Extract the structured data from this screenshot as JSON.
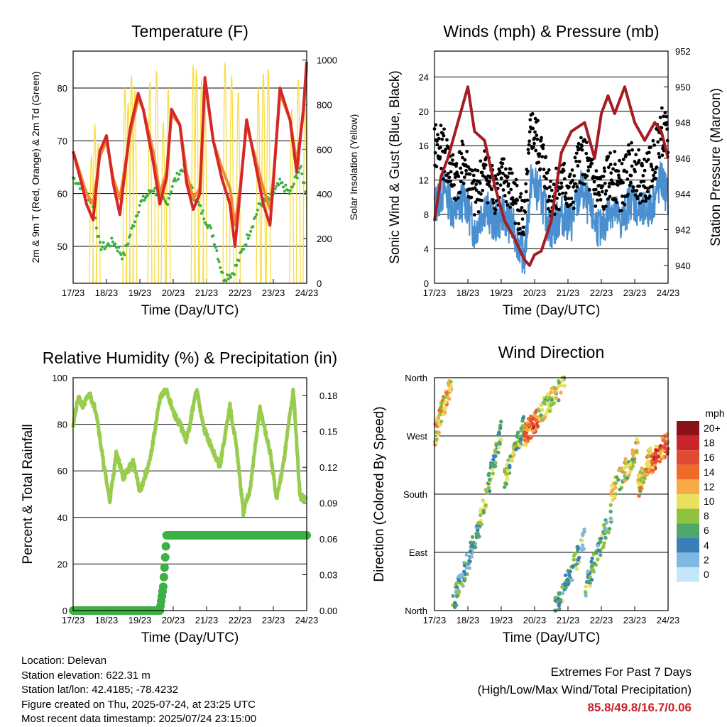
{
  "colors": {
    "temp_2m": "#d62728",
    "temp_9m": "#f08a2a",
    "dewpoint": "#3cb043",
    "solar": "#f7dd45",
    "sonic_wind": "#4a90d0",
    "gust": "#000000",
    "pressure": "#a51c24",
    "rh": "#98cc4e",
    "precip": "#3cb043",
    "extremes": "#c8242a"
  },
  "chart_data": [
    {
      "id": "temperature",
      "type": "line",
      "title": "Temperature (F)",
      "xlabel": "Time (Day/UTC)",
      "ylabel": "2m & 9m T (Red, Orange) & 2m Td (Green)",
      "y2label": "Solar Insolation (Yellow)",
      "x_ticks": [
        "17/23",
        "18/23",
        "19/23",
        "20/23",
        "21/23",
        "22/23",
        "23/23",
        "24/23"
      ],
      "xlim": [
        0,
        7
      ],
      "ylim": [
        43,
        87
      ],
      "y_ticks": [
        50,
        60,
        70,
        80
      ],
      "y2lim": [
        0,
        1040
      ],
      "y2_ticks": [
        0,
        200,
        400,
        600,
        800,
        1000
      ],
      "series": [
        {
          "name": "2m T",
          "x": [
            0,
            0.25,
            0.4,
            0.6,
            0.8,
            1.0,
            1.2,
            1.4,
            1.7,
            1.95,
            2.1,
            2.4,
            2.6,
            2.8,
            2.95,
            3.2,
            3.4,
            3.6,
            3.8,
            3.95,
            4.2,
            4.45,
            4.7,
            4.85,
            5.0,
            5.2,
            5.45,
            5.7,
            5.9,
            6.0,
            6.2,
            6.5,
            6.7,
            6.9,
            7.0
          ],
          "y": [
            68,
            62,
            58,
            55,
            68,
            71,
            62,
            56,
            72,
            79,
            76,
            66,
            58,
            63,
            76,
            73,
            62,
            57,
            60,
            82,
            70,
            63,
            58,
            50,
            60,
            74,
            66,
            58,
            54,
            62,
            80,
            74,
            64,
            76,
            85
          ]
        },
        {
          "name": "9m T",
          "x": [
            0,
            0.25,
            0.4,
            0.6,
            0.8,
            1.0,
            1.2,
            1.4,
            1.7,
            1.95,
            2.1,
            2.4,
            2.6,
            2.8,
            2.95,
            3.2,
            3.4,
            3.6,
            3.8,
            3.95,
            4.2,
            4.45,
            4.7,
            4.85,
            5.0,
            5.2,
            5.45,
            5.7,
            5.9,
            6.0,
            6.2,
            6.5,
            6.7,
            6.9,
            7.0
          ],
          "y": [
            68,
            63,
            60,
            58,
            67,
            70,
            63,
            59,
            71,
            78,
            76,
            68,
            60,
            64,
            75,
            73,
            64,
            59,
            61,
            81,
            70,
            65,
            61,
            54,
            61,
            73,
            67,
            61,
            57,
            63,
            79,
            74,
            66,
            75,
            84
          ]
        },
        {
          "name": "2m Td",
          "x": [
            0,
            0.3,
            0.6,
            0.8,
            1.0,
            1.2,
            1.5,
            1.8,
            2.0,
            2.4,
            2.8,
            3.0,
            3.3,
            3.6,
            3.9,
            4.2,
            4.5,
            4.8,
            5.0,
            5.3,
            5.6,
            5.9,
            6.2,
            6.5,
            6.8,
            7.0
          ],
          "y": [
            63,
            61,
            58,
            50,
            50,
            51,
            48,
            54,
            58,
            61,
            58,
            62,
            65,
            60,
            56,
            52,
            44,
            45,
            48,
            53,
            58,
            59,
            62,
            60,
            65,
            60
          ]
        },
        {
          "name": "Solar",
          "axis": "y2",
          "peaks": [
            0.55,
            0.65,
            0.75,
            1.55,
            1.65,
            1.75,
            1.85,
            2.3,
            2.5,
            2.7,
            2.85,
            3.6,
            3.7,
            3.85,
            3.95,
            4.55,
            4.75,
            4.95,
            5.55,
            5.7,
            5.85,
            6.55,
            6.75,
            6.95
          ],
          "peak_values": [
            600,
            750,
            660,
            920,
            850,
            980,
            910,
            950,
            1000,
            760,
            920,
            1030,
            1010,
            960,
            880,
            1040,
            980,
            900,
            920,
            990,
            1010,
            820,
            960,
            880
          ]
        }
      ]
    },
    {
      "id": "winds",
      "type": "line",
      "title": "Winds (mph) & Pressure (mb)",
      "xlabel": "Time (Day/UTC)",
      "ylabel": "Sonic Wind & Gust (Blue, Black)",
      "y2label": "Station Pressure (Maroon)",
      "x_ticks": [
        "17/23",
        "18/23",
        "19/23",
        "20/23",
        "21/23",
        "22/23",
        "23/23",
        "24/23"
      ],
      "xlim": [
        0,
        7
      ],
      "ylim": [
        0,
        27
      ],
      "y_ticks": [
        0,
        4,
        8,
        12,
        16,
        20,
        24
      ],
      "y2lim": [
        939,
        952
      ],
      "y2_ticks": [
        940,
        942,
        944,
        946,
        948,
        950,
        952
      ],
      "series": [
        {
          "name": "Sonic Wind",
          "x": [
            0,
            0.3,
            0.6,
            0.9,
            1.2,
            1.5,
            1.8,
            2.1,
            2.4,
            2.7,
            2.9,
            3.2,
            3.5,
            3.8,
            4.1,
            4.4,
            4.7,
            5.0,
            5.3,
            5.6,
            5.9,
            6.2,
            6.5,
            6.8,
            7.0
          ],
          "y": [
            9,
            11,
            8,
            10,
            6,
            9,
            7,
            8,
            6,
            3,
            12,
            10,
            6,
            8,
            7,
            11,
            8,
            6,
            9,
            7,
            10,
            8,
            9,
            12,
            10
          ]
        },
        {
          "name": "Gust",
          "x": [
            0,
            0.3,
            0.6,
            0.9,
            1.2,
            1.5,
            1.8,
            2.1,
            2.4,
            2.7,
            2.9,
            3.2,
            3.5,
            3.8,
            4.1,
            4.4,
            4.7,
            5.0,
            5.3,
            5.6,
            5.9,
            6.2,
            6.5,
            6.8,
            7.0
          ],
          "y": [
            16,
            15,
            12,
            14,
            10,
            13,
            11,
            12,
            10,
            7,
            18,
            15,
            10,
            12,
            10,
            15,
            12,
            10,
            13,
            11,
            14,
            12,
            13,
            18,
            16
          ]
        },
        {
          "name": "Station Pressure",
          "axis": "y2",
          "x": [
            0,
            0.2,
            0.4,
            0.7,
            1.0,
            1.2,
            1.5,
            1.8,
            2.1,
            2.4,
            2.7,
            2.85,
            3.0,
            3.2,
            3.5,
            3.8,
            4.1,
            4.5,
            4.8,
            5.0,
            5.2,
            5.4,
            5.7,
            6.0,
            6.3,
            6.6,
            6.8,
            7.0
          ],
          "y": [
            942.5,
            945,
            946,
            948,
            950,
            947.5,
            947,
            944.5,
            942.5,
            941.5,
            940.3,
            940,
            940.6,
            940.8,
            942.5,
            946.3,
            947.5,
            948,
            946,
            948.5,
            949.5,
            948.5,
            950,
            948,
            947,
            948,
            947.5,
            946
          ]
        }
      ]
    },
    {
      "id": "humidity",
      "type": "line",
      "title": "Relative Humidity (%) & Precipitation (in)",
      "xlabel": "Time (Day/UTC)",
      "ylabel": "Percent & Total Rainfall",
      "x_ticks": [
        "17/23",
        "18/23",
        "19/23",
        "20/23",
        "21/23",
        "22/23",
        "23/23",
        "24/23"
      ],
      "xlim": [
        0,
        7
      ],
      "ylim": [
        0,
        100
      ],
      "y_ticks": [
        0,
        20,
        40,
        60,
        80,
        100
      ],
      "y2lim": [
        0,
        0.195
      ],
      "y2_ticks": [
        "0.00",
        "0.03",
        "0.06",
        "0.09",
        "0.12",
        "0.15",
        "0.18"
      ],
      "series": [
        {
          "name": "RH",
          "x": [
            0,
            0.15,
            0.3,
            0.5,
            0.7,
            0.9,
            1.1,
            1.3,
            1.5,
            1.8,
            2.0,
            2.3,
            2.6,
            2.8,
            3.0,
            3.2,
            3.4,
            3.7,
            3.9,
            4.2,
            4.4,
            4.7,
            4.9,
            5.1,
            5.3,
            5.6,
            5.9,
            6.1,
            6.3,
            6.6,
            6.8,
            6.95
          ],
          "y": [
            80,
            91,
            88,
            93,
            85,
            64,
            47,
            68,
            57,
            64,
            51,
            64,
            91,
            95,
            85,
            80,
            73,
            95,
            79,
            68,
            62,
            88,
            70,
            42,
            52,
            87,
            68,
            48,
            63,
            95,
            49,
            48
          ]
        },
        {
          "name": "Precipitation",
          "axis": "y2",
          "x": [
            0,
            2.6,
            2.65,
            2.7,
            2.75,
            2.8,
            7.0
          ],
          "y": [
            0,
            0,
            0.01,
            0.02,
            0.04,
            0.063,
            0.063
          ]
        }
      ]
    },
    {
      "id": "wind_direction",
      "type": "scatter",
      "title": "Wind Direction",
      "xlabel": "Time (Day/UTC)",
      "ylabel": "Direction (Colored By Speed)",
      "x_ticks": [
        "17/23",
        "18/23",
        "19/23",
        "20/23",
        "21/23",
        "22/23",
        "23/23",
        "24/23"
      ],
      "xlim": [
        0,
        7
      ],
      "y_ticks": [
        "North",
        "East",
        "South",
        "West",
        "North"
      ],
      "y_values": [
        0,
        90,
        180,
        270,
        360
      ],
      "legend_title": "mph",
      "legend_labels": [
        "20+",
        "18",
        "16",
        "14",
        "12",
        "10",
        "8",
        "6",
        "4",
        "2",
        "0"
      ],
      "legend_colors": [
        "#8c1219",
        "#c8242a",
        "#e04b34",
        "#f06a2a",
        "#f9a94a",
        "#e9e05e",
        "#8fc33f",
        "#4ea66a",
        "#3b7fb9",
        "#7fb8e2",
        "#c3e6f8"
      ],
      "segments": [
        {
          "x0": 0.0,
          "x1": 0.5,
          "d0": 270,
          "d1": 355,
          "speed": 11
        },
        {
          "x0": 0.55,
          "x1": 1.3,
          "d0": 10,
          "d1": 120,
          "speed": 5
        },
        {
          "x0": 1.3,
          "x1": 2.0,
          "d0": 120,
          "d1": 280,
          "speed": 7
        },
        {
          "x0": 2.1,
          "x1": 2.7,
          "d0": 200,
          "d1": 290,
          "speed": 8
        },
        {
          "x0": 2.7,
          "x1": 3.1,
          "d0": 270,
          "d1": 300,
          "speed": 14
        },
        {
          "x0": 3.1,
          "x1": 3.9,
          "d0": 300,
          "d1": 355,
          "speed": 9
        },
        {
          "x0": 3.6,
          "x1": 4.5,
          "d0": 0,
          "d1": 110,
          "speed": 6
        },
        {
          "x0": 4.5,
          "x1": 5.3,
          "d0": 30,
          "d1": 150,
          "speed": 6
        },
        {
          "x0": 5.3,
          "x1": 6.1,
          "d0": 180,
          "d1": 250,
          "speed": 9
        },
        {
          "x0": 6.1,
          "x1": 6.5,
          "d0": 190,
          "d1": 240,
          "speed": 10
        },
        {
          "x0": 6.5,
          "x1": 7.0,
          "d0": 230,
          "d1": 260,
          "speed": 14
        }
      ]
    }
  ],
  "footer": {
    "location": "Location: Delevan",
    "elevation": "Station elevation: 622.31 m",
    "latlon": "Station lat/lon: 42.4185; -78.4232",
    "created": "Figure created on Thu, 2025-07-24, at 23:25 UTC",
    "recent": "Most recent data timestamp: 2025/07/24 23:15:00",
    "extremes_title": "Extremes For Past 7 Days",
    "extremes_sub": "(High/Low/Max Wind/Total Precipitation)",
    "extremes_value": "85.8/49.8/16.7/0.06"
  }
}
